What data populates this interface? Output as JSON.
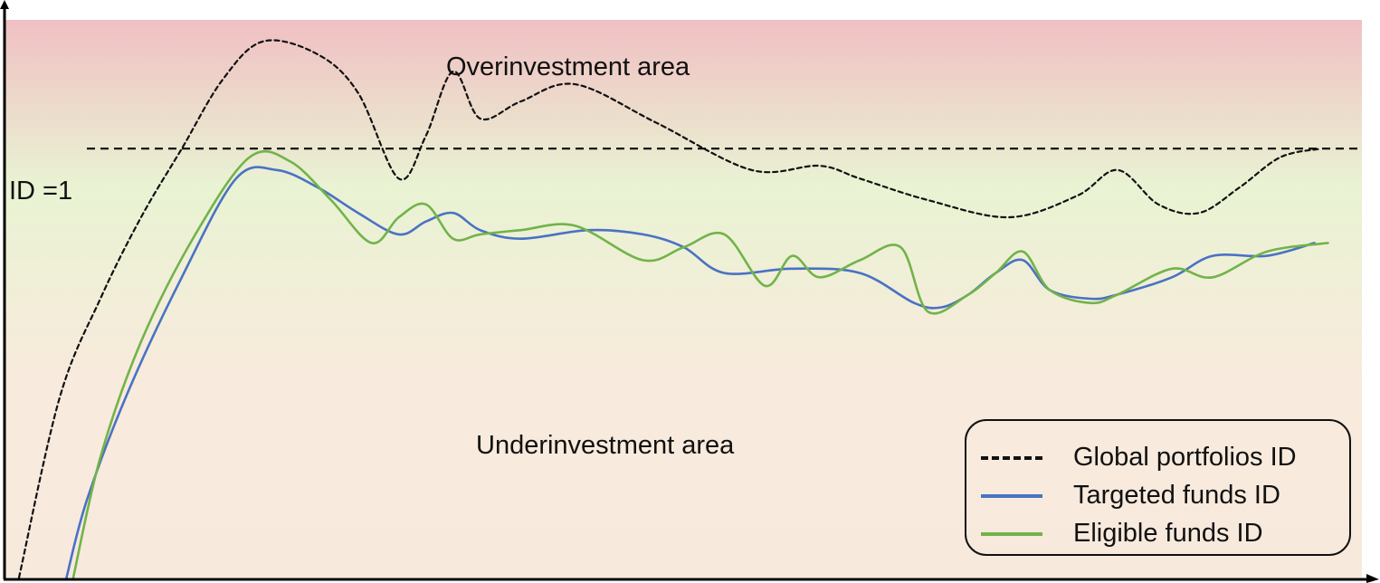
{
  "chart_data": {
    "type": "line",
    "title": "",
    "xlabel": "",
    "ylabel": "",
    "zones": {
      "over_label": "Overinvestment area",
      "under_label": "Underinvestment area",
      "over_color": "#f0c0c3",
      "mid_color": "#e9f3d3",
      "under_color": "#f8eadc"
    },
    "reference_line": {
      "label": "ID =1",
      "y": 1.0,
      "style": "dashed",
      "color": "#111111"
    },
    "xlim": [
      0,
      100
    ],
    "ylim": [
      0,
      1.3
    ],
    "grid": false,
    "legend_position": "bottom-right",
    "series": [
      {
        "name": "Global portfolios ID",
        "color": "#111111",
        "style": "dashed",
        "x": [
          1,
          4,
          7,
          10,
          13,
          16,
          19,
          23,
          26,
          29,
          31,
          33,
          35,
          38,
          42,
          48,
          55,
          60,
          63,
          68,
          74,
          79,
          82,
          85,
          88,
          91,
          94,
          97
        ],
        "y": [
          0.0,
          0.42,
          0.65,
          0.84,
          1.0,
          1.16,
          1.25,
          1.22,
          1.13,
          0.93,
          1.03,
          1.18,
          1.07,
          1.11,
          1.15,
          1.06,
          0.95,
          0.96,
          0.93,
          0.88,
          0.84,
          0.89,
          0.95,
          0.87,
          0.85,
          0.91,
          0.98,
          1.0
        ]
      },
      {
        "name": "Targeted funds ID",
        "color": "#4a72c4",
        "style": "solid",
        "x": [
          4.5,
          6,
          9,
          13,
          17,
          20,
          23,
          26,
          29,
          31,
          33,
          35,
          38,
          43,
          47,
          50,
          53,
          58,
          63,
          67,
          69,
          71,
          73,
          75,
          77,
          80,
          82,
          86,
          89,
          93,
          96.5
        ],
        "y": [
          0.0,
          0.18,
          0.43,
          0.7,
          0.93,
          0.95,
          0.91,
          0.85,
          0.8,
          0.83,
          0.85,
          0.81,
          0.79,
          0.81,
          0.8,
          0.77,
          0.71,
          0.72,
          0.71,
          0.64,
          0.63,
          0.66,
          0.71,
          0.74,
          0.67,
          0.65,
          0.66,
          0.7,
          0.75,
          0.75,
          0.78
        ]
      },
      {
        "name": "Eligible funds ID",
        "color": "#72b34a",
        "style": "solid",
        "x": [
          5,
          7,
          10,
          14,
          18,
          21,
          24,
          27,
          29,
          31,
          33,
          35,
          38,
          42,
          47,
          50,
          53,
          56,
          58,
          60,
          63,
          66,
          68,
          71,
          73,
          75,
          77,
          80,
          82,
          86,
          89,
          93,
          97.5
        ],
        "y": [
          0.0,
          0.28,
          0.55,
          0.8,
          0.98,
          0.97,
          0.88,
          0.78,
          0.84,
          0.87,
          0.79,
          0.8,
          0.81,
          0.82,
          0.74,
          0.77,
          0.8,
          0.68,
          0.75,
          0.7,
          0.74,
          0.77,
          0.62,
          0.66,
          0.71,
          0.76,
          0.67,
          0.64,
          0.66,
          0.72,
          0.7,
          0.76,
          0.78
        ]
      }
    ]
  }
}
